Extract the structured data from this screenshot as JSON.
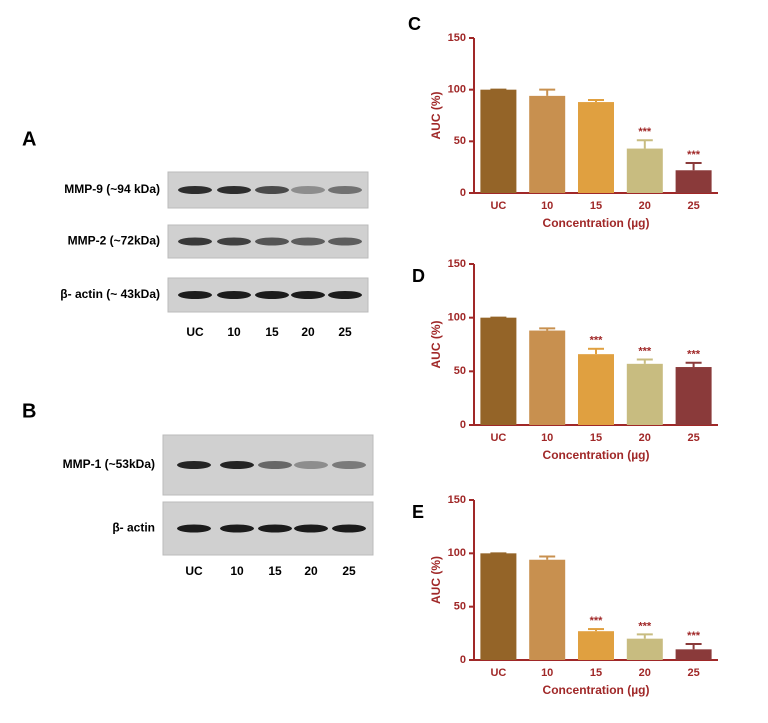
{
  "blots": [
    {
      "panel": "A",
      "rows": [
        "MMP-9 (~94 kDa)",
        "MMP-2 (~72kDa)",
        "β- actin (~ 43kDa)"
      ],
      "lanes": [
        "UC",
        "10",
        "15",
        "20",
        "25"
      ]
    },
    {
      "panel": "B",
      "rows": [
        "MMP-1 (~53kDa)",
        "β- actin"
      ],
      "lanes": [
        "UC",
        "10",
        "15",
        "20",
        "25"
      ]
    }
  ],
  "chart_data": [
    {
      "type": "bar",
      "panel": "C",
      "y_label": "AUC (%)",
      "x_label": "Concentration (µg)",
      "categories": [
        "UC",
        "10",
        "15",
        "20",
        "25"
      ],
      "values": [
        100,
        94,
        88,
        43,
        22
      ],
      "errors": [
        0,
        6,
        2,
        8,
        7
      ],
      "significance": [
        null,
        null,
        null,
        "***",
        "***"
      ],
      "colors": [
        "#946428",
        "#c8904f",
        "#e0a040",
        "#c8bc80",
        "#8a3a3a"
      ],
      "axis_color": "#a02828",
      "ylim": [
        0,
        150
      ],
      "yticks": [
        0,
        50,
        100,
        150
      ]
    },
    {
      "type": "bar",
      "panel": "D",
      "y_label": "AUC (%)",
      "x_label": "Concentration (µg)",
      "categories": [
        "UC",
        "10",
        "15",
        "20",
        "25"
      ],
      "values": [
        100,
        88,
        66,
        57,
        54
      ],
      "errors": [
        0,
        2,
        5,
        4,
        4
      ],
      "significance": [
        null,
        null,
        "***",
        "***",
        "***"
      ],
      "colors": [
        "#946428",
        "#c8904f",
        "#e0a040",
        "#c8bc80",
        "#8a3a3a"
      ],
      "axis_color": "#a02828",
      "ylim": [
        0,
        150
      ],
      "yticks": [
        0,
        50,
        100,
        150
      ]
    },
    {
      "type": "bar",
      "panel": "E",
      "y_label": "AUC (%)",
      "x_label": "Concentration (µg)",
      "categories": [
        "UC",
        "10",
        "15",
        "20",
        "25"
      ],
      "values": [
        100,
        94,
        27,
        20,
        10
      ],
      "errors": [
        0,
        3,
        2,
        4,
        5
      ],
      "significance": [
        null,
        null,
        "***",
        "***",
        "***"
      ],
      "colors": [
        "#946428",
        "#c8904f",
        "#e0a040",
        "#c8bc80",
        "#8a3a3a"
      ],
      "axis_color": "#a02828",
      "ylim": [
        0,
        150
      ],
      "yticks": [
        0,
        50,
        100,
        150
      ]
    }
  ]
}
